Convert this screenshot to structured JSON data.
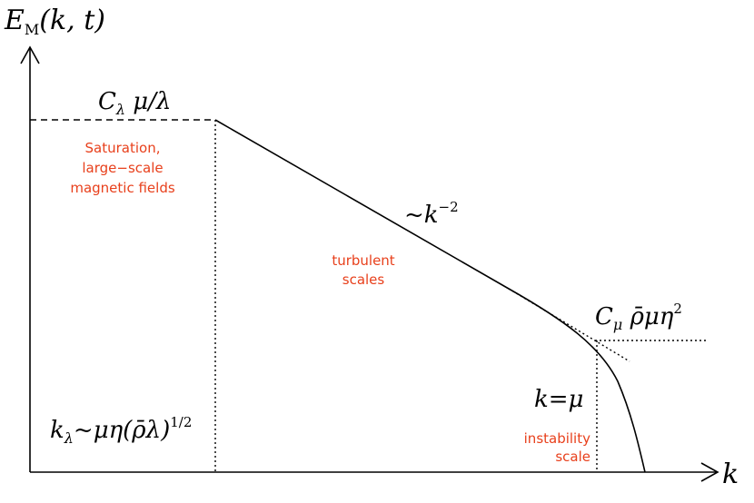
{
  "y_axis_label": {
    "main": "E",
    "sub": "M",
    "rest": "(k, t)"
  },
  "x_axis_label": "k",
  "saturation_level": {
    "main": "C",
    "sub": "λ",
    "rest": " μ/λ"
  },
  "saturation_note": [
    "Saturation,",
    "large−scale",
    "magnetic fields"
  ],
  "slope_label": {
    "main": "~k",
    "sup": "−2"
  },
  "turbulent_note": [
    "turbulent",
    "scales"
  ],
  "instability_level": {
    "main": "C",
    "sub": "μ",
    "rest": " ρ̄μη",
    "sup": "2"
  },
  "instability_wavenumber": "k=μ",
  "instability_note": [
    "instability",
    "scale"
  ],
  "saturation_wavenumber": {
    "main": "k",
    "sub": "λ",
    "rest": "~μη(ρ̄λ)",
    "sup": "1/2"
  }
}
